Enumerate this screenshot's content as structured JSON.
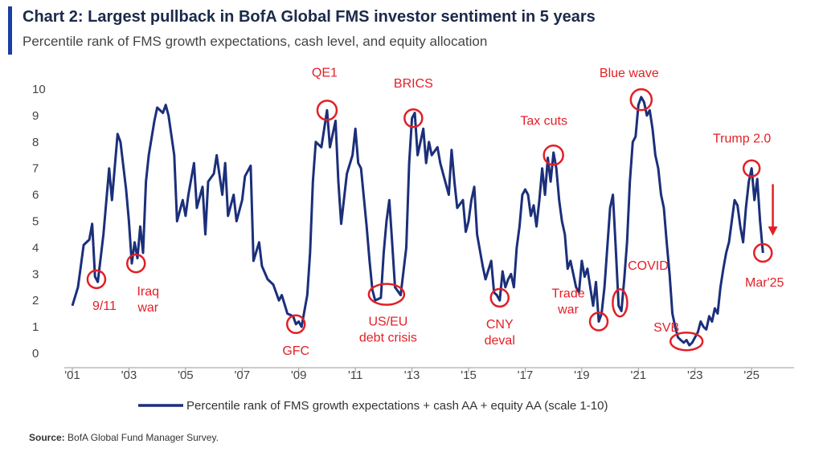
{
  "header": {
    "title": "Chart 2: Largest pullback in BofA Global FMS investor sentiment in 5 years",
    "subtitle": "Percentile rank of FMS growth expectations, cash level, and equity allocation"
  },
  "footer": {
    "source_label": "Source:",
    "source_text": "BofA Global Fund Manager Survey."
  },
  "colors": {
    "line": "#1b2f7a",
    "annotation": "#e21f26",
    "accent": "#1a3fa0"
  },
  "chart_data": {
    "type": "line",
    "xlim": [
      2001.0,
      2026.5
    ],
    "ylim": [
      0,
      10
    ],
    "yticks": [
      0,
      1,
      2,
      3,
      4,
      5,
      6,
      7,
      8,
      9,
      10
    ],
    "xticks": [
      {
        "x": 2001,
        "label": "'01"
      },
      {
        "x": 2003,
        "label": "'03"
      },
      {
        "x": 2005,
        "label": "'05"
      },
      {
        "x": 2007,
        "label": "'07"
      },
      {
        "x": 2009,
        "label": "'09"
      },
      {
        "x": 2011,
        "label": "'11"
      },
      {
        "x": 2013,
        "label": "'13"
      },
      {
        "x": 2015,
        "label": "'15"
      },
      {
        "x": 2017,
        "label": "'17"
      },
      {
        "x": 2019,
        "label": "'19"
      },
      {
        "x": 2021,
        "label": "'21"
      },
      {
        "x": 2023,
        "label": "'23"
      },
      {
        "x": 2025,
        "label": "'25"
      }
    ],
    "series": [
      {
        "name": "Percentile rank of FMS growth expectations + cash AA + equity AA (scale 1-10)",
        "points": [
          [
            2001.0,
            1.8
          ],
          [
            2001.2,
            2.5
          ],
          [
            2001.4,
            4.1
          ],
          [
            2001.6,
            4.3
          ],
          [
            2001.7,
            4.9
          ],
          [
            2001.8,
            2.9
          ],
          [
            2001.9,
            2.7
          ],
          [
            2002.1,
            4.5
          ],
          [
            2002.3,
            7.0
          ],
          [
            2002.4,
            5.8
          ],
          [
            2002.6,
            8.3
          ],
          [
            2002.7,
            8.0
          ],
          [
            2002.9,
            6.2
          ],
          [
            2003.0,
            5.0
          ],
          [
            2003.1,
            3.4
          ],
          [
            2003.2,
            4.2
          ],
          [
            2003.3,
            3.6
          ],
          [
            2003.4,
            4.8
          ],
          [
            2003.5,
            3.8
          ],
          [
            2003.6,
            6.5
          ],
          [
            2003.7,
            7.5
          ],
          [
            2003.9,
            8.8
          ],
          [
            2004.0,
            9.3
          ],
          [
            2004.2,
            9.1
          ],
          [
            2004.3,
            9.4
          ],
          [
            2004.4,
            9.0
          ],
          [
            2004.6,
            7.5
          ],
          [
            2004.7,
            5.0
          ],
          [
            2004.9,
            5.8
          ],
          [
            2005.0,
            5.2
          ],
          [
            2005.1,
            6.0
          ],
          [
            2005.3,
            7.2
          ],
          [
            2005.4,
            5.5
          ],
          [
            2005.6,
            6.3
          ],
          [
            2005.7,
            4.5
          ],
          [
            2005.8,
            6.5
          ],
          [
            2006.0,
            6.8
          ],
          [
            2006.1,
            7.5
          ],
          [
            2006.3,
            6.0
          ],
          [
            2006.4,
            7.2
          ],
          [
            2006.5,
            5.2
          ],
          [
            2006.7,
            6.0
          ],
          [
            2006.8,
            5.0
          ],
          [
            2007.0,
            5.8
          ],
          [
            2007.1,
            6.7
          ],
          [
            2007.3,
            7.1
          ],
          [
            2007.4,
            3.5
          ],
          [
            2007.6,
            4.2
          ],
          [
            2007.7,
            3.3
          ],
          [
            2007.9,
            2.8
          ],
          [
            2008.1,
            2.6
          ],
          [
            2008.3,
            2.0
          ],
          [
            2008.4,
            2.2
          ],
          [
            2008.6,
            1.5
          ],
          [
            2008.8,
            1.4
          ],
          [
            2008.9,
            1.1
          ],
          [
            2009.0,
            1.2
          ],
          [
            2009.1,
            1.0
          ],
          [
            2009.3,
            2.2
          ],
          [
            2009.4,
            3.8
          ],
          [
            2009.5,
            6.5
          ],
          [
            2009.6,
            8.0
          ],
          [
            2009.8,
            7.8
          ],
          [
            2009.9,
            8.5
          ],
          [
            2010.0,
            9.2
          ],
          [
            2010.1,
            7.8
          ],
          [
            2010.3,
            8.8
          ],
          [
            2010.4,
            6.5
          ],
          [
            2010.5,
            4.9
          ],
          [
            2010.7,
            6.8
          ],
          [
            2010.9,
            7.5
          ],
          [
            2011.0,
            8.5
          ],
          [
            2011.1,
            7.2
          ],
          [
            2011.2,
            7.0
          ],
          [
            2011.4,
            4.8
          ],
          [
            2011.5,
            3.5
          ],
          [
            2011.6,
            2.4
          ],
          [
            2011.7,
            2.0
          ],
          [
            2011.9,
            2.1
          ],
          [
            2012.0,
            3.8
          ],
          [
            2012.1,
            5.0
          ],
          [
            2012.2,
            5.8
          ],
          [
            2012.3,
            4.2
          ],
          [
            2012.4,
            2.5
          ],
          [
            2012.6,
            2.2
          ],
          [
            2012.8,
            4.0
          ],
          [
            2012.9,
            7.2
          ],
          [
            2013.0,
            8.9
          ],
          [
            2013.1,
            9.1
          ],
          [
            2013.2,
            7.5
          ],
          [
            2013.4,
            8.5
          ],
          [
            2013.5,
            7.2
          ],
          [
            2013.6,
            8.0
          ],
          [
            2013.7,
            7.5
          ],
          [
            2013.9,
            7.8
          ],
          [
            2014.0,
            7.2
          ],
          [
            2014.1,
            6.8
          ],
          [
            2014.3,
            6.0
          ],
          [
            2014.4,
            7.7
          ],
          [
            2014.5,
            6.5
          ],
          [
            2014.6,
            5.5
          ],
          [
            2014.8,
            5.8
          ],
          [
            2014.9,
            4.6
          ],
          [
            2015.0,
            5.0
          ],
          [
            2015.1,
            5.8
          ],
          [
            2015.2,
            6.3
          ],
          [
            2015.3,
            4.5
          ],
          [
            2015.4,
            3.9
          ],
          [
            2015.5,
            3.3
          ],
          [
            2015.6,
            2.8
          ],
          [
            2015.8,
            3.5
          ],
          [
            2015.9,
            2.3
          ],
          [
            2016.0,
            2.2
          ],
          [
            2016.1,
            2.0
          ],
          [
            2016.2,
            3.1
          ],
          [
            2016.3,
            2.5
          ],
          [
            2016.4,
            2.8
          ],
          [
            2016.5,
            3.0
          ],
          [
            2016.6,
            2.5
          ],
          [
            2016.7,
            4.0
          ],
          [
            2016.8,
            4.8
          ],
          [
            2016.9,
            6.0
          ],
          [
            2017.0,
            6.2
          ],
          [
            2017.1,
            6.0
          ],
          [
            2017.2,
            5.2
          ],
          [
            2017.3,
            5.6
          ],
          [
            2017.4,
            4.8
          ],
          [
            2017.5,
            5.8
          ],
          [
            2017.6,
            7.0
          ],
          [
            2017.7,
            6.0
          ],
          [
            2017.8,
            7.4
          ],
          [
            2017.9,
            6.5
          ],
          [
            2018.0,
            7.6
          ],
          [
            2018.1,
            7.0
          ],
          [
            2018.2,
            5.8
          ],
          [
            2018.3,
            5.0
          ],
          [
            2018.4,
            4.5
          ],
          [
            2018.5,
            3.2
          ],
          [
            2018.6,
            3.5
          ],
          [
            2018.7,
            3.0
          ],
          [
            2018.8,
            2.5
          ],
          [
            2018.9,
            2.3
          ],
          [
            2019.0,
            3.5
          ],
          [
            2019.1,
            2.9
          ],
          [
            2019.2,
            3.2
          ],
          [
            2019.3,
            2.5
          ],
          [
            2019.4,
            1.8
          ],
          [
            2019.5,
            2.7
          ],
          [
            2019.6,
            1.2
          ],
          [
            2019.7,
            1.5
          ],
          [
            2019.8,
            2.5
          ],
          [
            2019.9,
            4.0
          ],
          [
            2020.0,
            5.5
          ],
          [
            2020.1,
            6.0
          ],
          [
            2020.2,
            4.0
          ],
          [
            2020.3,
            1.8
          ],
          [
            2020.4,
            1.6
          ],
          [
            2020.5,
            2.8
          ],
          [
            2020.6,
            4.2
          ],
          [
            2020.7,
            6.5
          ],
          [
            2020.8,
            8.0
          ],
          [
            2020.9,
            8.2
          ],
          [
            2021.0,
            9.4
          ],
          [
            2021.1,
            9.7
          ],
          [
            2021.2,
            9.5
          ],
          [
            2021.3,
            9.0
          ],
          [
            2021.4,
            9.2
          ],
          [
            2021.5,
            8.5
          ],
          [
            2021.6,
            7.5
          ],
          [
            2021.7,
            7.0
          ],
          [
            2021.8,
            6.0
          ],
          [
            2021.9,
            5.5
          ],
          [
            2022.0,
            4.2
          ],
          [
            2022.1,
            3.0
          ],
          [
            2022.2,
            1.5
          ],
          [
            2022.3,
            1.0
          ],
          [
            2022.4,
            0.6
          ],
          [
            2022.5,
            0.5
          ],
          [
            2022.6,
            0.4
          ],
          [
            2022.7,
            0.5
          ],
          [
            2022.8,
            0.3
          ],
          [
            2022.9,
            0.4
          ],
          [
            2023.0,
            0.6
          ],
          [
            2023.1,
            0.8
          ],
          [
            2023.2,
            1.2
          ],
          [
            2023.3,
            1.0
          ],
          [
            2023.4,
            0.9
          ],
          [
            2023.5,
            1.4
          ],
          [
            2023.6,
            1.2
          ],
          [
            2023.7,
            1.7
          ],
          [
            2023.8,
            1.5
          ],
          [
            2023.9,
            2.5
          ],
          [
            2024.0,
            3.2
          ],
          [
            2024.1,
            3.8
          ],
          [
            2024.2,
            4.2
          ],
          [
            2024.3,
            5.0
          ],
          [
            2024.4,
            5.8
          ],
          [
            2024.5,
            5.6
          ],
          [
            2024.6,
            4.8
          ],
          [
            2024.7,
            4.2
          ],
          [
            2024.8,
            5.5
          ],
          [
            2024.9,
            6.5
          ],
          [
            2025.0,
            7.0
          ],
          [
            2025.1,
            5.8
          ],
          [
            2025.2,
            6.6
          ],
          [
            2025.3,
            5.0
          ],
          [
            2025.4,
            3.8
          ]
        ]
      }
    ],
    "annotations": [
      {
        "text": "9/11",
        "x": 2001.85,
        "y": 2.8
      },
      {
        "text": "Iraq\nwar",
        "x": 2003.25,
        "y": 3.4
      },
      {
        "text": "GFC",
        "x": 2008.9,
        "y": 1.1
      },
      {
        "text": "QE1",
        "x": 2010.0,
        "y": 9.2
      },
      {
        "text": "US/EU\ndebt crisis",
        "x": 2012.1,
        "y": 2.2
      },
      {
        "text": "BRICS",
        "x": 2013.05,
        "y": 8.9
      },
      {
        "text": "CNY\ndeval",
        "x": 2016.1,
        "y": 2.1
      },
      {
        "text": "Tax cuts",
        "x": 2018.0,
        "y": 7.5
      },
      {
        "text": "Trade\nwar",
        "x": 2019.6,
        "y": 1.2
      },
      {
        "text": "COVID",
        "x": 2020.35,
        "y": 2.0
      },
      {
        "text": "Blue wave",
        "x": 2021.1,
        "y": 9.6
      },
      {
        "text": "SVB",
        "x": 2022.7,
        "y": 0.45
      },
      {
        "text": "Trump 2.0",
        "x": 2025.0,
        "y": 7.0
      },
      {
        "text": "Mar'25",
        "x": 2025.4,
        "y": 3.8
      }
    ]
  }
}
